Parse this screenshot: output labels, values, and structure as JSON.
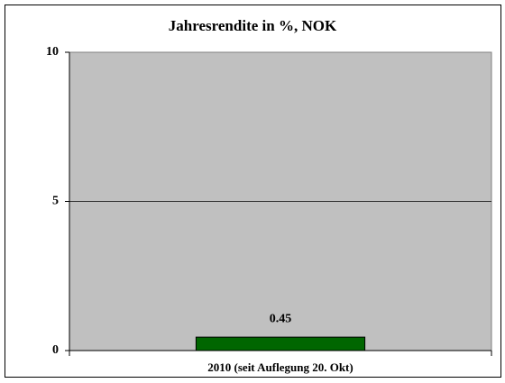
{
  "chart_data": {
    "type": "bar",
    "title": "Jahresrendite in %, NOK",
    "categories": [
      "2010 (seit Auflegung 20. Okt)"
    ],
    "values": [
      0.45
    ],
    "color": "#006600",
    "plot_background": "#c0c0c0",
    "ylim": [
      0,
      10
    ],
    "yticks": [
      0,
      5,
      10
    ],
    "grid": true
  }
}
